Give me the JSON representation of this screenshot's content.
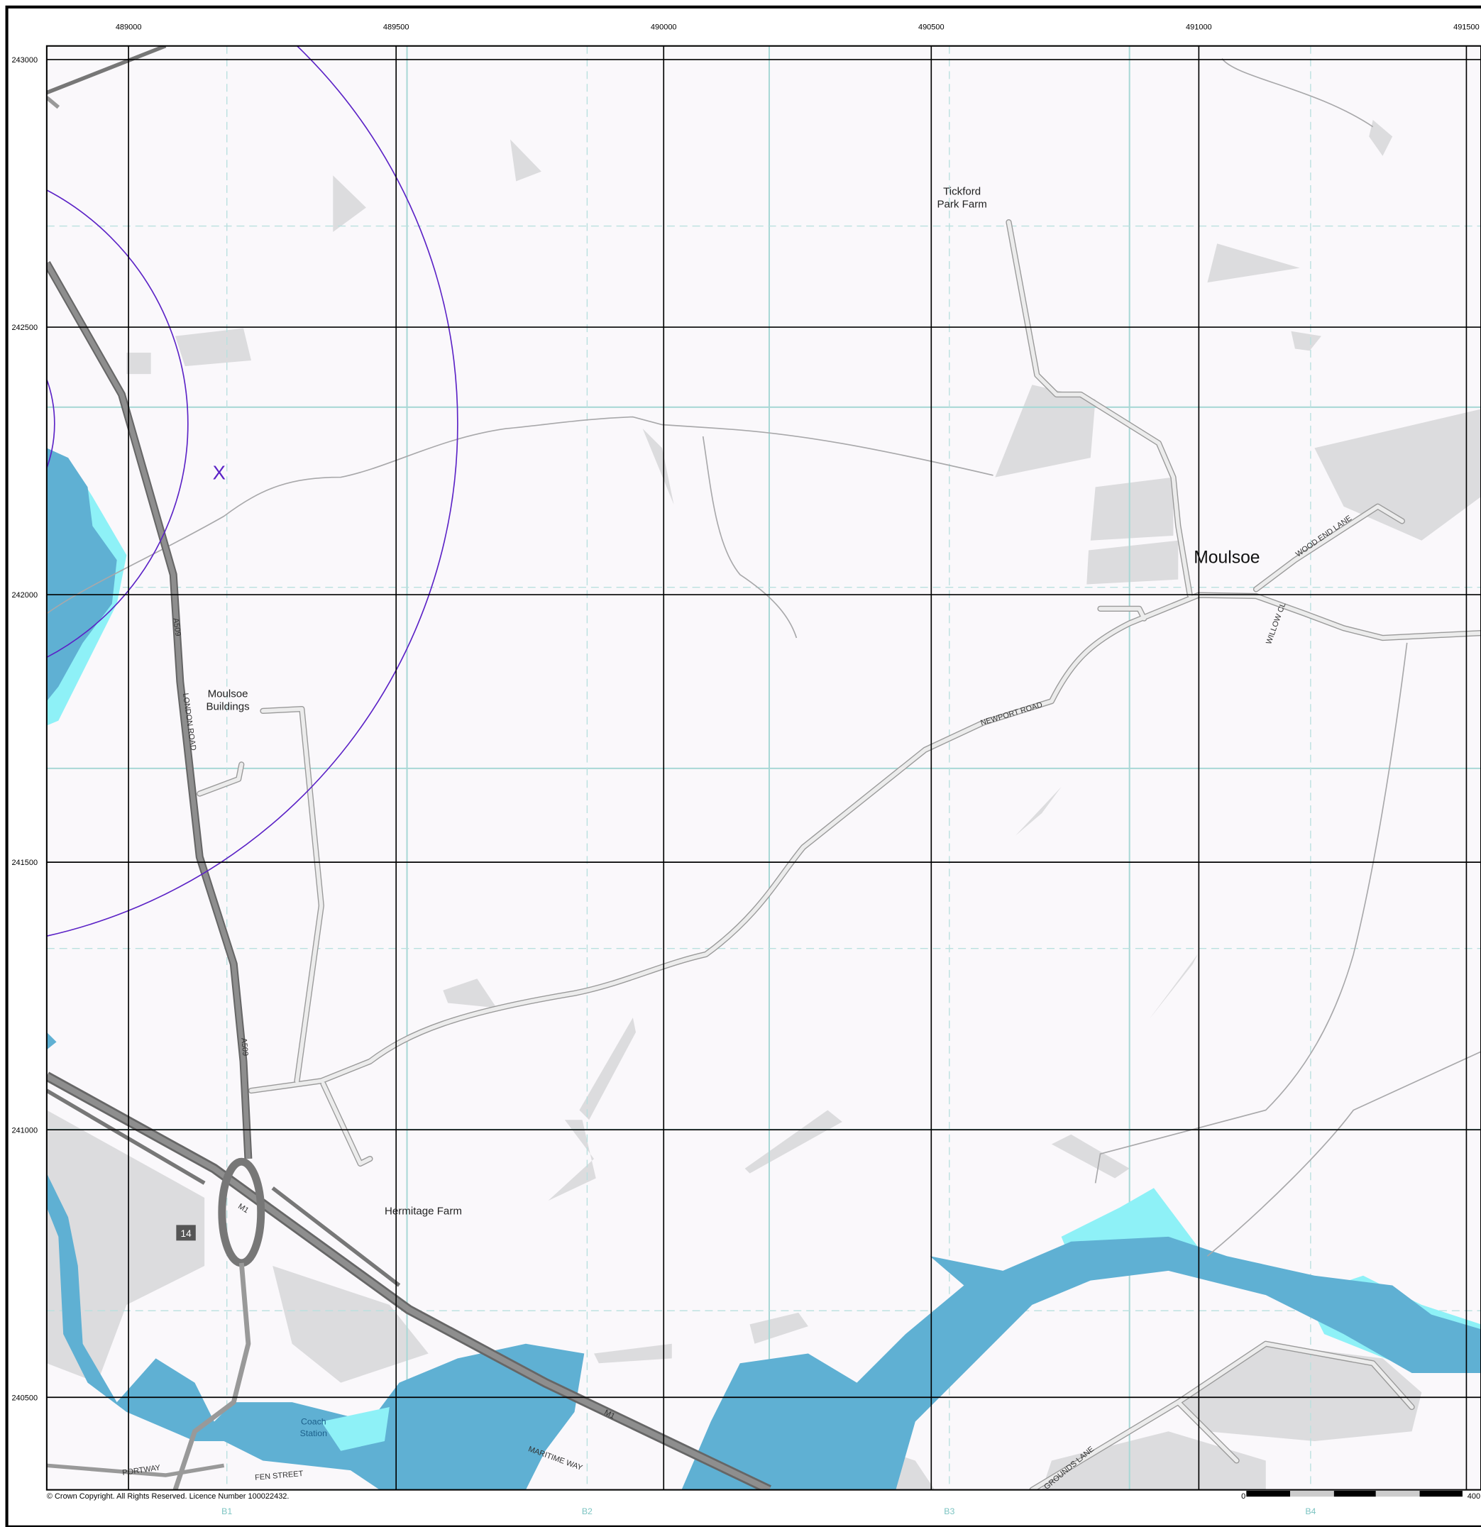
{
  "grid": {
    "eastings": [
      489000,
      489500,
      490000,
      490500,
      491000,
      491500
    ],
    "northings": [
      243000,
      242500,
      242000,
      241500,
      241000,
      240500
    ]
  },
  "places": {
    "tickford": [
      "Tickford",
      "Park Farm"
    ],
    "moulsoe": "Moulsoe",
    "moulsoe_buildings": [
      "Moulsoe",
      "Buildings"
    ],
    "hermitage": "Hermitage Farm",
    "coach_station": [
      "Coach",
      "Station"
    ]
  },
  "roads": {
    "london_road": "LONDON ROAD",
    "a509": "A509",
    "m1": "M1",
    "newport_road": "NEWPORT ROAD",
    "wood_end_lane": "WOOD END LANE",
    "willow_cl": "WILLOW CL",
    "fen_street": "FEN STREET",
    "portway": "PORTWAY",
    "maritime_way": "MARITIME WAY",
    "grounds_lane": "GROUNDS LANE",
    "junction": "14"
  },
  "marker": "X",
  "sheet_refs": [
    "B1",
    "B2",
    "B3",
    "B4"
  ],
  "scale": [
    "0",
    "400"
  ],
  "copyright": "© Crown Copyright. All Rights Reserved. Licence Number 100022432."
}
